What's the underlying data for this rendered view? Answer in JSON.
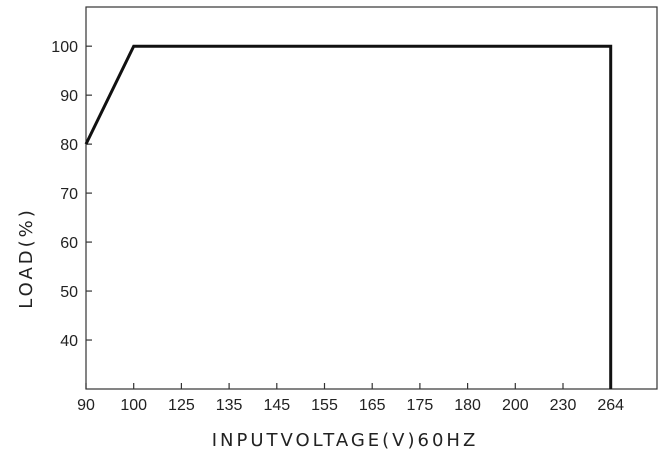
{
  "chart_data": {
    "type": "line",
    "title": "",
    "xlabel": "INPUTVOLTAGE(V)60HZ",
    "ylabel": "LOAD(%)",
    "x_ticks": [
      "90",
      "100",
      "125",
      "135",
      "145",
      "155",
      "165",
      "175",
      "180",
      "200",
      "230",
      "264"
    ],
    "y_ticks": [
      "100",
      "90",
      "80",
      "70",
      "60",
      "50",
      "40"
    ],
    "ylim": [
      30,
      108
    ],
    "grid": false,
    "series": [
      {
        "points": [
          {
            "x": "90",
            "y": 80
          },
          {
            "x": "100",
            "y": 100
          },
          {
            "x": "264",
            "y": 100
          },
          {
            "x": "264",
            "y": 30
          }
        ]
      }
    ]
  }
}
